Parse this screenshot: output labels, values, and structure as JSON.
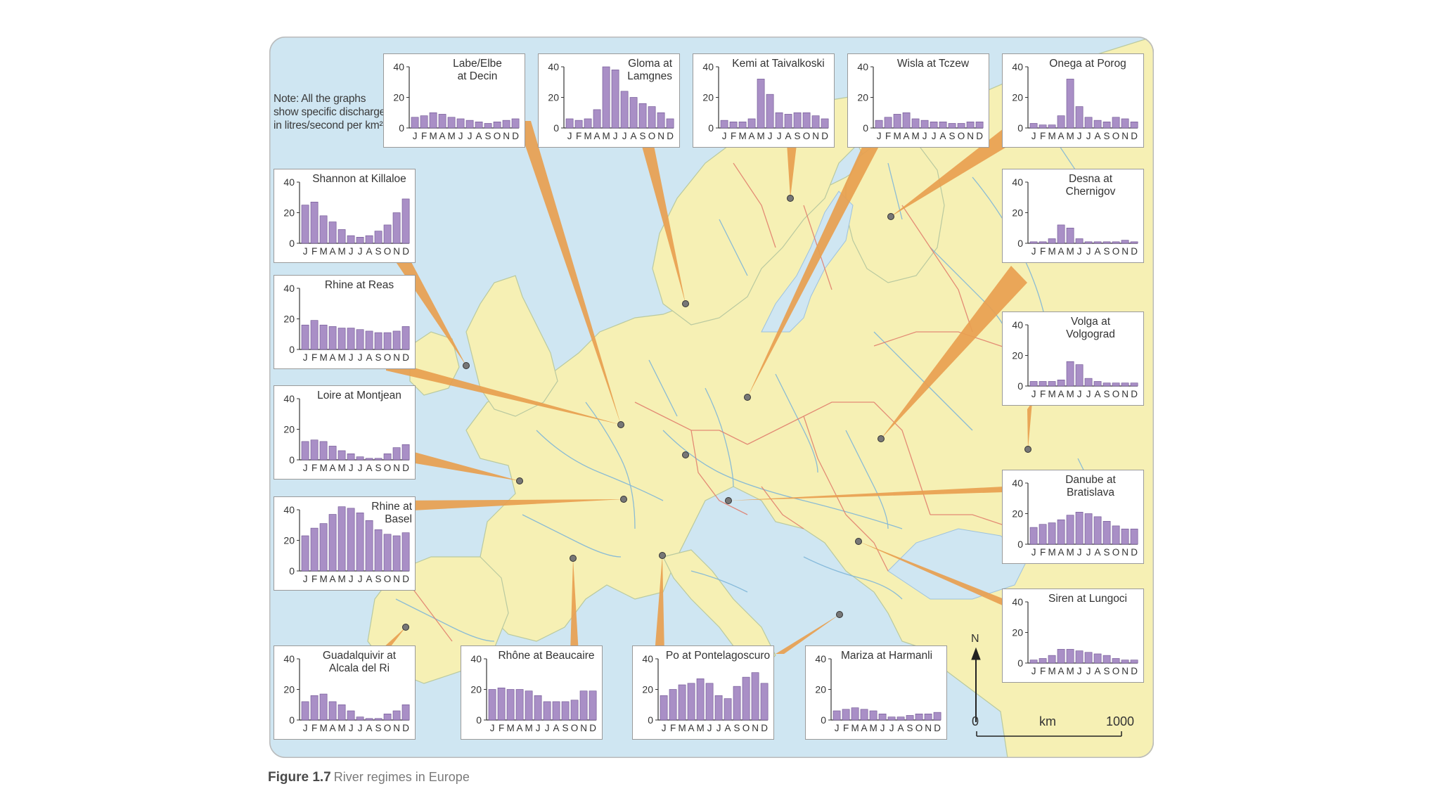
{
  "note": "Note: All the graphs show specific discharge in litres/second per km²",
  "caption": {
    "label": "Figure 1.7",
    "text": "River regimes in Europe"
  },
  "scale": {
    "zero": "0",
    "unit": "km",
    "max": "1000",
    "north": "N"
  },
  "axis": {
    "ticks": [
      "40",
      "20",
      "0"
    ],
    "months": [
      "J",
      "F",
      "M",
      "A",
      "M",
      "J",
      "J",
      "A",
      "S",
      "O",
      "N",
      "D"
    ],
    "max": 40
  },
  "colors": {
    "sea": "#cfe6f2",
    "land": "#f6f0b4",
    "river": "#7fb6d8",
    "border": "#e07a6a",
    "bar": "#a98fc6",
    "bar_edge": "#6b4f8f",
    "pointer": "#e8a050"
  },
  "charts": [
    {
      "title": "Labe/Elbe\nat Decin",
      "values": [
        7,
        8,
        10,
        9,
        7,
        6,
        5,
        4,
        3,
        4,
        5,
        6
      ]
    },
    {
      "title": "Gloma at\nLamgnes",
      "values": [
        6,
        5,
        6,
        12,
        40,
        38,
        24,
        20,
        16,
        14,
        10,
        6
      ]
    },
    {
      "title": "Kemi at Taivalkoski",
      "values": [
        5,
        4,
        4,
        6,
        32,
        22,
        10,
        9,
        10,
        10,
        8,
        6
      ]
    },
    {
      "title": "Wisla at Tczew",
      "values": [
        5,
        7,
        9,
        10,
        6,
        5,
        4,
        4,
        3,
        3,
        4,
        4
      ]
    },
    {
      "title": "Onega at Porog",
      "values": [
        3,
        2,
        2,
        8,
        32,
        14,
        7,
        5,
        4,
        7,
        6,
        4
      ]
    },
    {
      "title": "Shannon at Killaloe",
      "values": [
        25,
        27,
        18,
        14,
        9,
        5,
        4,
        5,
        8,
        12,
        20,
        29
      ]
    },
    {
      "title": "Desna at\nChernigov",
      "values": [
        1,
        1,
        3,
        12,
        10,
        3,
        1,
        1,
        1,
        1,
        2,
        1
      ]
    },
    {
      "title": "Rhine at Reas",
      "values": [
        16,
        19,
        16,
        15,
        14,
        14,
        13,
        12,
        11,
        11,
        12,
        15
      ]
    },
    {
      "title": "Volga at\nVolgograd",
      "values": [
        3,
        3,
        3,
        4,
        16,
        14,
        5,
        3,
        2,
        2,
        2,
        2
      ]
    },
    {
      "title": "Loire at Montjean",
      "values": [
        12,
        13,
        12,
        9,
        6,
        4,
        2,
        1,
        1,
        4,
        8,
        10
      ]
    },
    {
      "title": "Rhine at\nBasel",
      "values": [
        23,
        28,
        31,
        37,
        42,
        41,
        38,
        33,
        27,
        24,
        23,
        25
      ]
    },
    {
      "title": "Danube at\nBratislava",
      "values": [
        11,
        13,
        14,
        16,
        19,
        21,
        20,
        18,
        15,
        12,
        10,
        10
      ]
    },
    {
      "title": "Siren at Lungoci",
      "values": [
        2,
        3,
        5,
        9,
        9,
        8,
        7,
        6,
        5,
        3,
        2,
        2
      ]
    },
    {
      "title": "Guadalquivir at\nAlcala del Ri",
      "values": [
        12,
        16,
        17,
        12,
        10,
        6,
        2,
        1,
        1,
        4,
        6,
        10
      ]
    },
    {
      "title": "Rhône at Beaucaire",
      "values": [
        20,
        21,
        20,
        20,
        19,
        16,
        12,
        12,
        12,
        13,
        19,
        19
      ]
    },
    {
      "title": "Po at Pontelagoscuro",
      "values": [
        16,
        20,
        23,
        24,
        27,
        24,
        16,
        14,
        22,
        28,
        31,
        24
      ]
    },
    {
      "title": "Mariza at Harmanli",
      "values": [
        6,
        7,
        8,
        7,
        6,
        4,
        2,
        2,
        3,
        4,
        4,
        5
      ]
    }
  ]
}
